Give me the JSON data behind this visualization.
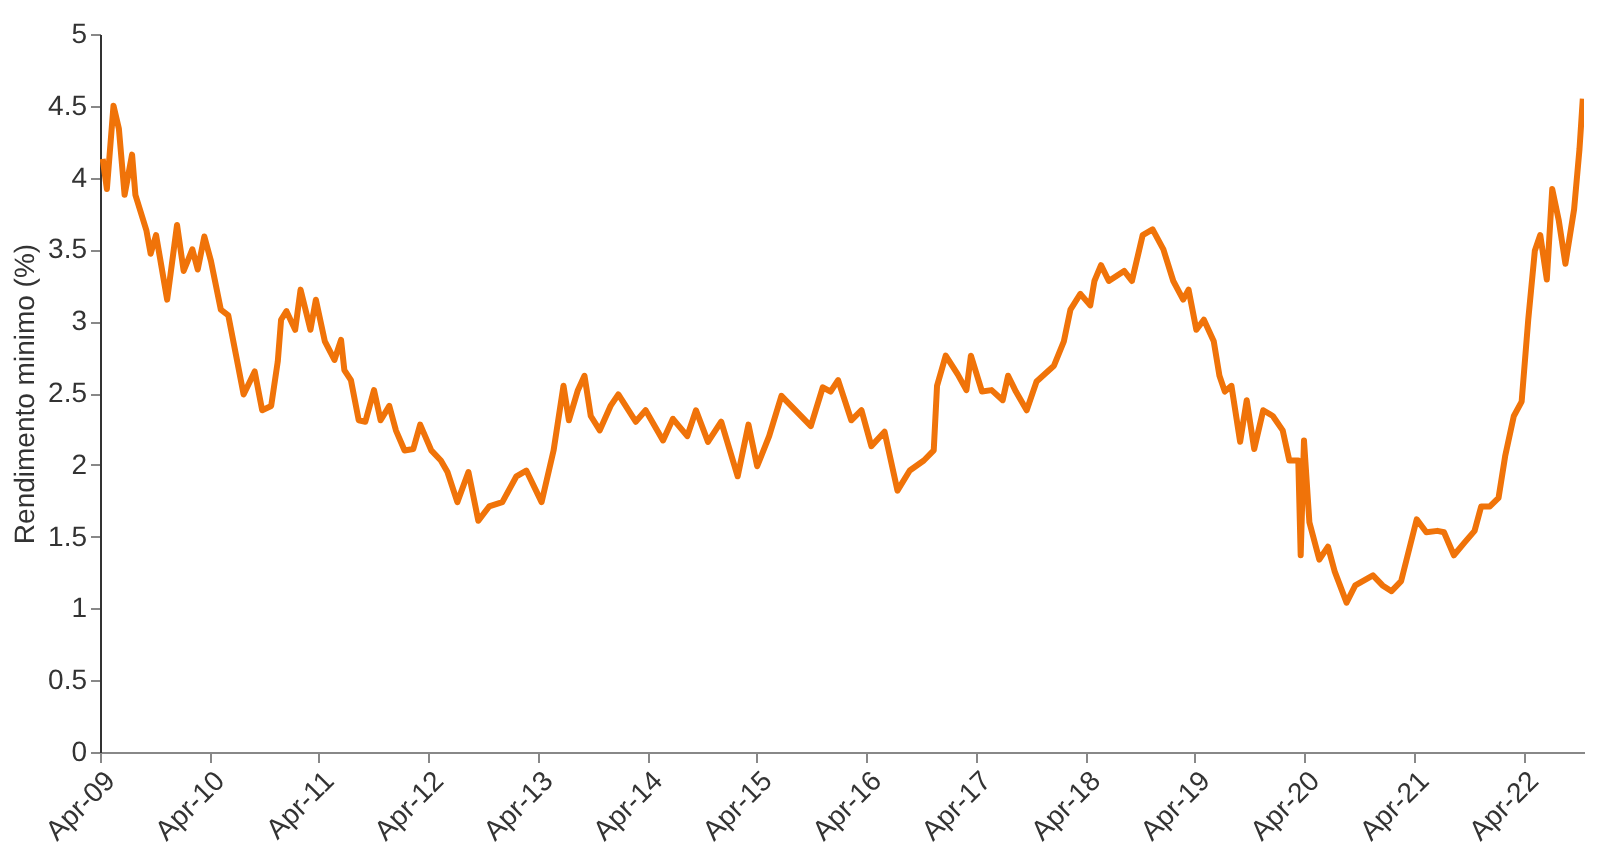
{
  "chart_data": {
    "type": "line",
    "ylabel": "Rendimento minimo (%)",
    "xlim": [
      "2009-04-01",
      "2022-10-20"
    ],
    "xticks": [
      {
        "value": "2009-04-01",
        "label": "Apr-09"
      },
      {
        "value": "2010-04-01",
        "label": "Apr-10"
      },
      {
        "value": "2011-04-01",
        "label": "Apr-11"
      },
      {
        "value": "2012-04-01",
        "label": "Apr-12"
      },
      {
        "value": "2013-04-01",
        "label": "Apr-13"
      },
      {
        "value": "2014-04-01",
        "label": "Apr-14"
      },
      {
        "value": "2015-04-01",
        "label": "Apr-15"
      },
      {
        "value": "2016-04-01",
        "label": "Apr-16"
      },
      {
        "value": "2017-04-01",
        "label": "Apr-17"
      },
      {
        "value": "2018-04-01",
        "label": "Apr-18"
      },
      {
        "value": "2019-04-01",
        "label": "Apr-19"
      },
      {
        "value": "2020-04-01",
        "label": "Apr-20"
      },
      {
        "value": "2021-04-01",
        "label": "Apr-21"
      },
      {
        "value": "2022-04-01",
        "label": "Apr-22"
      }
    ],
    "ylim": [
      0,
      5
    ],
    "yticks": [
      0,
      0.5,
      1,
      1.5,
      2,
      2.5,
      3,
      3.5,
      4,
      4.5,
      5
    ],
    "series": [
      {
        "color": "#f07309",
        "x": [
          "2009-04-10",
          "2009-04-24",
          "2009-05-16",
          "2009-06-03",
          "2009-06-22",
          "2009-07-17",
          "2009-07-28",
          "2009-09-03",
          "2009-09-17",
          "2009-10-05",
          "2009-11-11",
          "2009-12-14",
          "2010-01-05",
          "2010-02-03",
          "2010-02-21",
          "2010-03-15",
          "2010-04-06",
          "2010-05-09",
          "2010-06-03",
          "2010-06-29",
          "2010-07-24",
          "2010-08-30",
          "2010-09-24",
          "2010-10-24",
          "2010-11-15",
          "2010-11-26",
          "2010-12-14",
          "2011-01-12",
          "2011-01-30",
          "2011-03-04",
          "2011-03-22",
          "2011-04-21",
          "2011-05-23",
          "2011-06-14",
          "2011-06-25",
          "2011-07-17",
          "2011-08-12",
          "2011-09-03",
          "2011-10-02",
          "2011-10-24",
          "2011-11-22",
          "2011-12-14",
          "2012-01-12",
          "2012-02-10",
          "2012-03-04",
          "2012-04-10",
          "2012-05-12",
          "2012-06-03",
          "2012-07-06",
          "2012-08-12",
          "2012-09-14",
          "2012-10-20",
          "2012-12-03",
          "2013-01-19",
          "2013-02-21",
          "2013-04-13",
          "2013-05-23",
          "2013-06-25",
          "2013-07-13",
          "2013-08-12",
          "2013-09-03",
          "2013-09-24",
          "2013-10-24",
          "2013-11-29",
          "2013-12-25",
          "2014-02-21",
          "2014-03-26",
          "2014-05-23",
          "2014-06-25",
          "2014-08-12",
          "2014-09-10",
          "2014-10-20",
          "2014-12-03",
          "2015-01-27",
          "2015-03-04",
          "2015-04-02",
          "2015-05-12",
          "2015-06-22",
          "2015-08-12",
          "2015-09-28",
          "2015-11-07",
          "2015-12-03",
          "2015-12-28",
          "2016-02-10",
          "2016-03-15",
          "2016-04-17",
          "2016-05-31",
          "2016-07-13",
          "2016-08-23",
          "2016-10-09",
          "2016-11-11",
          "2016-11-22",
          "2016-12-21",
          "2017-01-30",
          "2017-02-28",
          "2017-03-15",
          "2017-04-21",
          "2017-05-23",
          "2017-06-29",
          "2017-07-17",
          "2017-08-12",
          "2017-09-17",
          "2017-10-20",
          "2017-12-17",
          "2018-01-19",
          "2018-02-10",
          "2018-03-15",
          "2018-04-17",
          "2018-05-01",
          "2018-05-23",
          "2018-06-18",
          "2018-08-08",
          "2018-09-03",
          "2018-10-09",
          "2018-11-11",
          "2018-12-17",
          "2019-01-19",
          "2019-02-21",
          "2019-03-11",
          "2019-04-06",
          "2019-05-01",
          "2019-06-03",
          "2019-06-22",
          "2019-07-10",
          "2019-08-01",
          "2019-08-30",
          "2019-09-21",
          "2019-10-16",
          "2019-11-15",
          "2019-12-17",
          "2020-01-19",
          "2020-02-10",
          "2020-03-11",
          "2020-03-19",
          "2020-03-30",
          "2020-04-17",
          "2020-05-20",
          "2020-06-18",
          "2020-07-10",
          "2020-08-19",
          "2020-09-17",
          "2020-11-15",
          "2020-12-17",
          "2021-01-16",
          "2021-02-17",
          "2021-04-10",
          "2021-05-12",
          "2021-06-18",
          "2021-07-10",
          "2021-08-12",
          "2021-09-17",
          "2021-10-20",
          "2021-11-11",
          "2021-12-10",
          "2022-01-08",
          "2022-01-30",
          "2022-02-28",
          "2022-03-26",
          "2022-04-17",
          "2022-05-09",
          "2022-05-27",
          "2022-06-18",
          "2022-07-06",
          "2022-07-28",
          "2022-08-19",
          "2022-09-17",
          "2022-10-05",
          "2022-10-16"
        ],
        "values": [
          4.13,
          3.92,
          4.5,
          4.34,
          3.88,
          4.16,
          3.88,
          3.63,
          3.47,
          3.6,
          3.15,
          3.67,
          3.35,
          3.5,
          3.36,
          3.59,
          3.42,
          3.08,
          3.04,
          2.76,
          2.49,
          2.65,
          2.38,
          2.41,
          2.72,
          3.01,
          3.07,
          2.94,
          3.22,
          2.94,
          3.15,
          2.86,
          2.73,
          2.87,
          2.66,
          2.59,
          2.31,
          2.3,
          2.52,
          2.31,
          2.41,
          2.24,
          2.1,
          2.11,
          2.28,
          2.1,
          2.03,
          1.95,
          1.74,
          1.95,
          1.61,
          1.71,
          1.74,
          1.92,
          1.96,
          1.74,
          2.1,
          2.55,
          2.31,
          2.52,
          2.62,
          2.34,
          2.24,
          2.41,
          2.49,
          2.3,
          2.38,
          2.17,
          2.32,
          2.2,
          2.38,
          2.16,
          2.3,
          1.92,
          2.28,
          1.99,
          2.2,
          2.48,
          2.37,
          2.27,
          2.54,
          2.51,
          2.59,
          2.31,
          2.38,
          2.13,
          2.23,
          1.82,
          1.96,
          2.03,
          2.1,
          2.55,
          2.76,
          2.63,
          2.52,
          2.76,
          2.51,
          2.52,
          2.45,
          2.62,
          2.51,
          2.38,
          2.58,
          2.69,
          2.86,
          3.08,
          3.19,
          3.11,
          3.28,
          3.39,
          3.28,
          3.35,
          3.28,
          3.6,
          3.64,
          3.5,
          3.28,
          3.15,
          3.22,
          2.94,
          3.01,
          2.86,
          2.62,
          2.51,
          2.55,
          2.16,
          2.45,
          2.11,
          2.38,
          2.34,
          2.24,
          2.03,
          2.03,
          1.37,
          2.17,
          1.6,
          1.34,
          1.43,
          1.26,
          1.04,
          1.16,
          1.23,
          1.16,
          1.12,
          1.19,
          1.62,
          1.53,
          1.54,
          1.53,
          1.37,
          1.46,
          1.54,
          1.71,
          1.71,
          1.77,
          2.06,
          2.34,
          2.44,
          3.01,
          3.49,
          3.6,
          3.29,
          3.92,
          3.7,
          3.4,
          3.78,
          4.2,
          4.55
        ]
      }
    ]
  }
}
